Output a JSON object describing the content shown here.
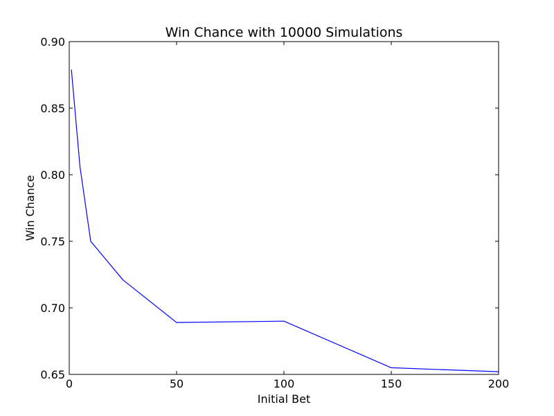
{
  "chart_data": {
    "type": "line",
    "title": "Win Chance with 10000 Simulations",
    "xlabel": "Initial Bet",
    "ylabel": "Win Chance",
    "xlim": [
      0,
      200
    ],
    "ylim": [
      0.65,
      0.9
    ],
    "xticks": [
      0,
      50,
      100,
      150,
      200
    ],
    "yticks": [
      0.65,
      0.7,
      0.75,
      0.8,
      0.85,
      0.9
    ],
    "xtick_labels": [
      "0",
      "50",
      "100",
      "150",
      "200"
    ],
    "ytick_labels": [
      "0.65",
      "0.70",
      "0.75",
      "0.80",
      "0.85",
      "0.90"
    ],
    "grid": false,
    "series": [
      {
        "color": "#0000ff",
        "x": [
          1,
          5,
          10,
          25,
          50,
          100,
          150,
          200
        ],
        "y": [
          0.879,
          0.806,
          0.75,
          0.721,
          0.689,
          0.69,
          0.655,
          0.652
        ]
      }
    ]
  }
}
